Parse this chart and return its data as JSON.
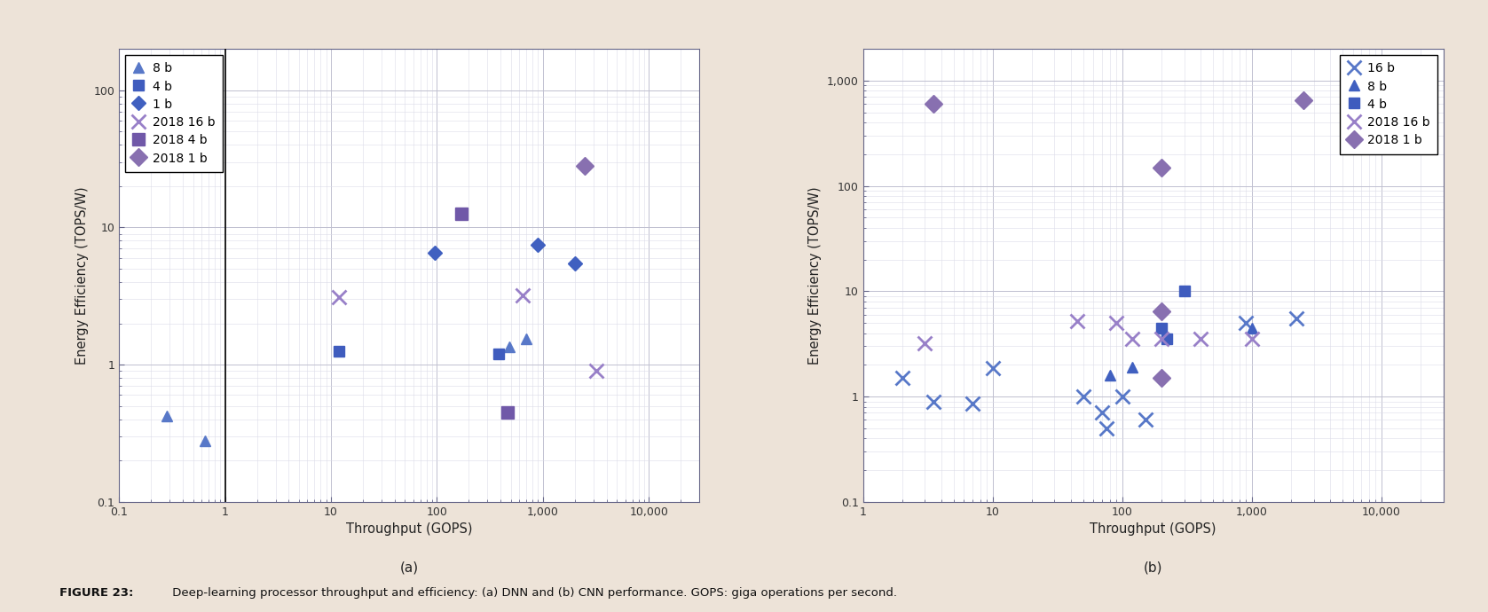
{
  "background_color": "#ede3d8",
  "plot_background": "#ffffff",
  "fig_caption_bold": "FIGURE 23:",
  "fig_caption_normal": " Deep-learning processor throughput and efficiency: (a) DNN and (b) CNN performance. GOPS: giga operations per second.",
  "plot_a": {
    "subtitle": "(a)",
    "xlabel": "Throughput (GOPS)",
    "ylabel": "Energy Efficiency (TOPS/W)",
    "xlim": [
      0.1,
      30000
    ],
    "ylim": [
      0.1,
      200
    ],
    "vline_x": 1.0,
    "series": [
      {
        "name": "8 b",
        "color": "#5878c8",
        "marker": "^",
        "markersize": 8,
        "points": [
          [
            0.28,
            0.42
          ],
          [
            0.65,
            0.28
          ],
          [
            480,
            1.35
          ],
          [
            700,
            1.55
          ]
        ]
      },
      {
        "name": "4 b",
        "color": "#3f5cbe",
        "marker": "s",
        "markersize": 8,
        "points": [
          [
            12,
            1.25
          ],
          [
            380,
            1.2
          ]
        ]
      },
      {
        "name": "1 b",
        "color": "#4060c0",
        "marker": "D",
        "markersize": 8,
        "points": [
          [
            95,
            6.5
          ],
          [
            900,
            7.5
          ],
          [
            2000,
            5.5
          ]
        ]
      },
      {
        "name": "2018 16 b",
        "color": "#9880c8",
        "marker": "x",
        "markersize": 11,
        "markeredgewidth": 2.0,
        "points": [
          [
            12,
            3.1
          ],
          [
            650,
            3.2
          ],
          [
            3200,
            0.9
          ]
        ]
      },
      {
        "name": "2018 4 b",
        "color": "#7058a8",
        "marker": "s",
        "markersize": 10,
        "points": [
          [
            170,
            12.5
          ],
          [
            460,
            0.45
          ]
        ]
      },
      {
        "name": "2018 1 b",
        "color": "#8870b0",
        "marker": "D",
        "markersize": 10,
        "points": [
          [
            2500,
            28
          ]
        ]
      }
    ]
  },
  "plot_b": {
    "subtitle": "(b)",
    "xlabel": "Throughput (GOPS)",
    "ylabel": "Energy Efficiency (TOPS/W)",
    "xlim": [
      1,
      30000
    ],
    "ylim": [
      0.1,
      2000
    ],
    "series": [
      {
        "name": "16 b",
        "color": "#5878c8",
        "marker": "x",
        "markersize": 11,
        "markeredgewidth": 2.0,
        "points": [
          [
            2.0,
            1.5
          ],
          [
            3.5,
            0.9
          ],
          [
            7,
            0.85
          ],
          [
            10,
            1.85
          ],
          [
            50,
            1.0
          ],
          [
            70,
            0.7
          ],
          [
            75,
            0.5
          ],
          [
            100,
            1.0
          ],
          [
            150,
            0.6
          ],
          [
            900,
            5.0
          ],
          [
            2200,
            5.5
          ]
        ]
      },
      {
        "name": "8 b",
        "color": "#4060c0",
        "marker": "^",
        "markersize": 8,
        "points": [
          [
            80,
            1.6
          ],
          [
            120,
            1.9
          ],
          [
            1000,
            4.5
          ]
        ]
      },
      {
        "name": "4 b",
        "color": "#3f5cbe",
        "marker": "s",
        "markersize": 8,
        "points": [
          [
            200,
            4.5
          ],
          [
            220,
            3.5
          ],
          [
            300,
            10.0
          ]
        ]
      },
      {
        "name": "2018 16 b",
        "color": "#9880c8",
        "marker": "x",
        "markersize": 11,
        "markeredgewidth": 2.0,
        "points": [
          [
            3,
            3.2
          ],
          [
            45,
            5.2
          ],
          [
            90,
            5.0
          ],
          [
            120,
            3.5
          ],
          [
            200,
            3.5
          ],
          [
            400,
            3.5
          ],
          [
            1000,
            3.5
          ]
        ]
      },
      {
        "name": "2018 1 b",
        "color": "#8870b0",
        "marker": "D",
        "markersize": 10,
        "points": [
          [
            3.5,
            600
          ],
          [
            200,
            150
          ],
          [
            200,
            6.5
          ],
          [
            200,
            1.5
          ],
          [
            2500,
            650
          ]
        ]
      }
    ]
  }
}
